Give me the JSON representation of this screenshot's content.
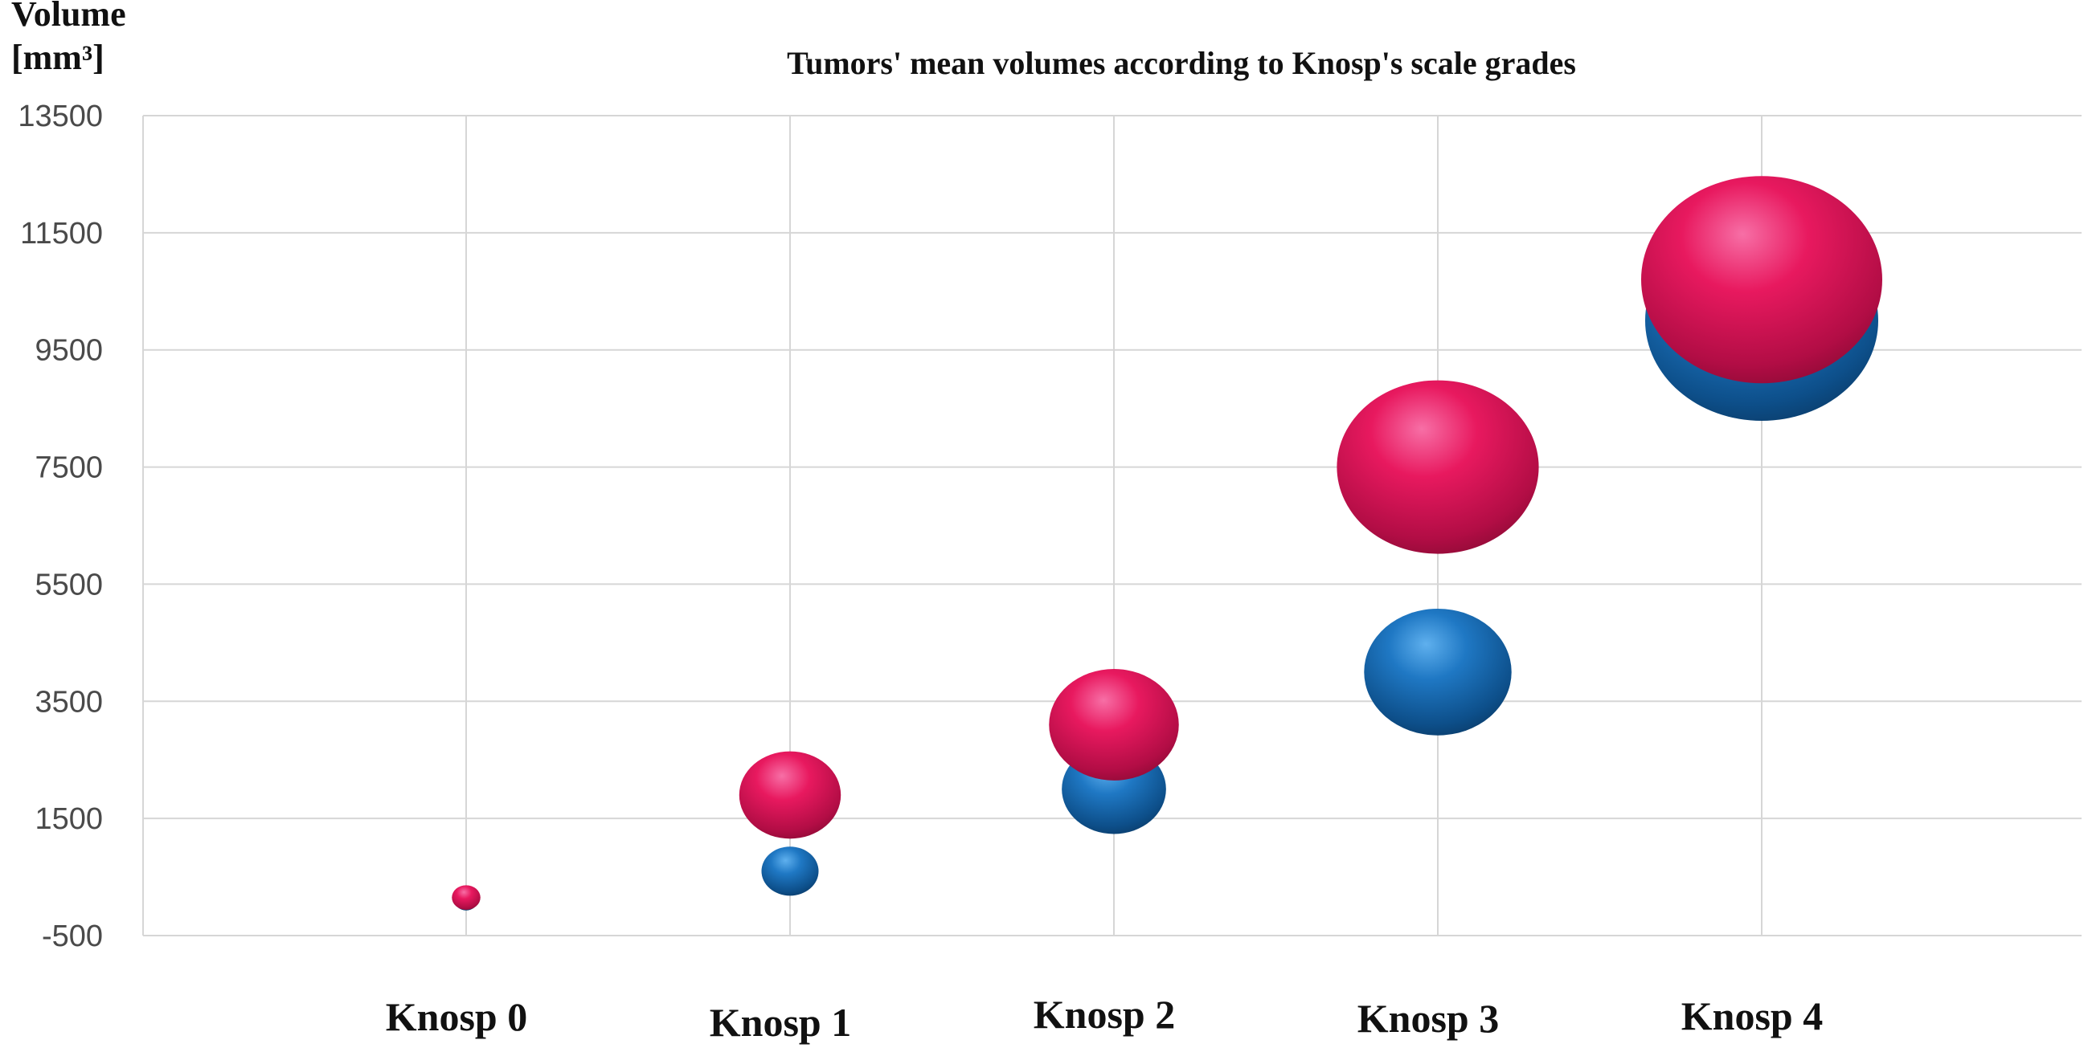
{
  "chart_data": {
    "type": "bubble",
    "title": "Tumors' mean volumes according to Knosp's scale grades",
    "ylabel_line1": "Volume",
    "ylabel_line2": "[mm³]",
    "xlabel": "",
    "ylim": [
      -500,
      13500
    ],
    "yticks": [
      13500,
      11500,
      9500,
      7500,
      5500,
      3500,
      1500,
      -500
    ],
    "ytick_labels": [
      "13500",
      "11500",
      "9500",
      "7500",
      "5500",
      "3500",
      "1500",
      "-500"
    ],
    "grid": true,
    "legend": "none",
    "categories": [
      "Knosp 0",
      "Knosp 1",
      "Knosp 2",
      "Knosp 3",
      "Knosp 4"
    ],
    "series": [
      {
        "color": "#1a6fb5",
        "values": [
          100,
          600,
          2000,
          4000,
          10000
        ],
        "sizes": [
          100,
          600,
          2000,
          4000,
          10000
        ]
      },
      {
        "color": "#e5195e",
        "values": [
          150,
          1900,
          3100,
          7500,
          10700
        ],
        "sizes": [
          150,
          1900,
          3100,
          7500,
          10700
        ]
      }
    ]
  }
}
